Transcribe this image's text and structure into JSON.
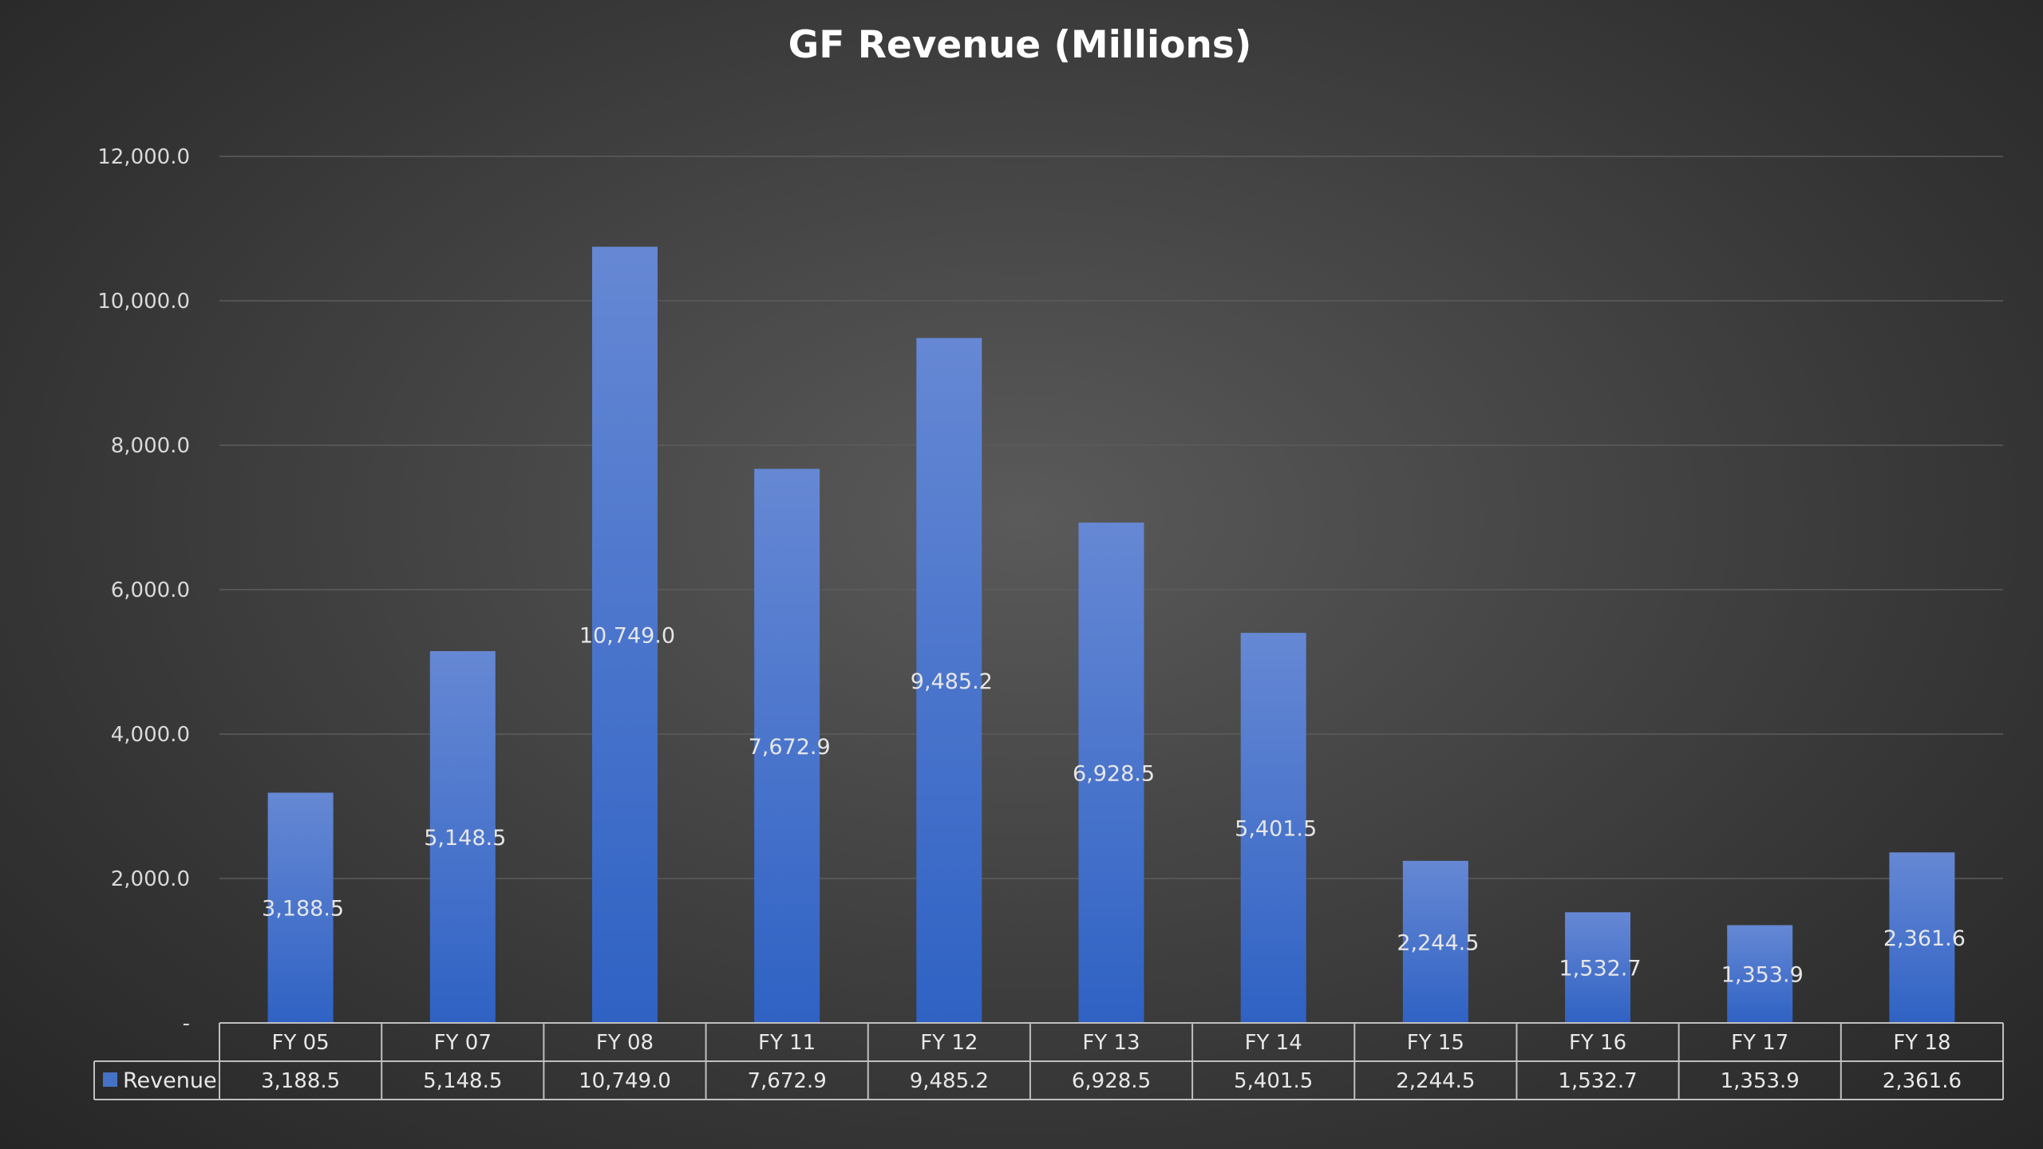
{
  "chart_data": {
    "type": "bar",
    "title": "GF Revenue (Millions)",
    "categories": [
      "FY 05",
      "FY 07",
      "FY 08",
      "FY 11",
      "FY 12",
      "FY 13",
      "FY 14",
      "FY 15",
      "FY 16",
      "FY 17",
      "FY 18"
    ],
    "series": [
      {
        "name": "Revenue",
        "values": [
          3188.5,
          5148.5,
          10749.0,
          7672.9,
          9485.2,
          6928.5,
          5401.5,
          2244.5,
          1532.7,
          1353.9,
          2361.6
        ],
        "labels": [
          "3,188.5",
          "5,148.5",
          "10,749.0",
          "7,672.9",
          "9,485.2",
          "6,928.5",
          "5,401.5",
          "2,244.5",
          "1,532.7",
          "1,353.9",
          "2,361.6"
        ]
      }
    ],
    "ylim": [
      0,
      12000
    ],
    "yticks": [
      0,
      2000,
      4000,
      6000,
      8000,
      10000,
      12000
    ],
    "ytick_labels": [
      "-",
      "2,000.0",
      "4,000.0",
      "6,000.0",
      "8,000.0",
      "10,000.0",
      "12,000.0"
    ],
    "grid": true,
    "legend": "data-table-left",
    "data_table": true,
    "colors": {
      "bar_top": "#6688d4",
      "bar_bottom": "#2f62c4",
      "legend_key": "#4472c4",
      "grid": "#5c5c5c",
      "table_border": "#bfbfbf",
      "text": "#e8e8e8"
    }
  }
}
